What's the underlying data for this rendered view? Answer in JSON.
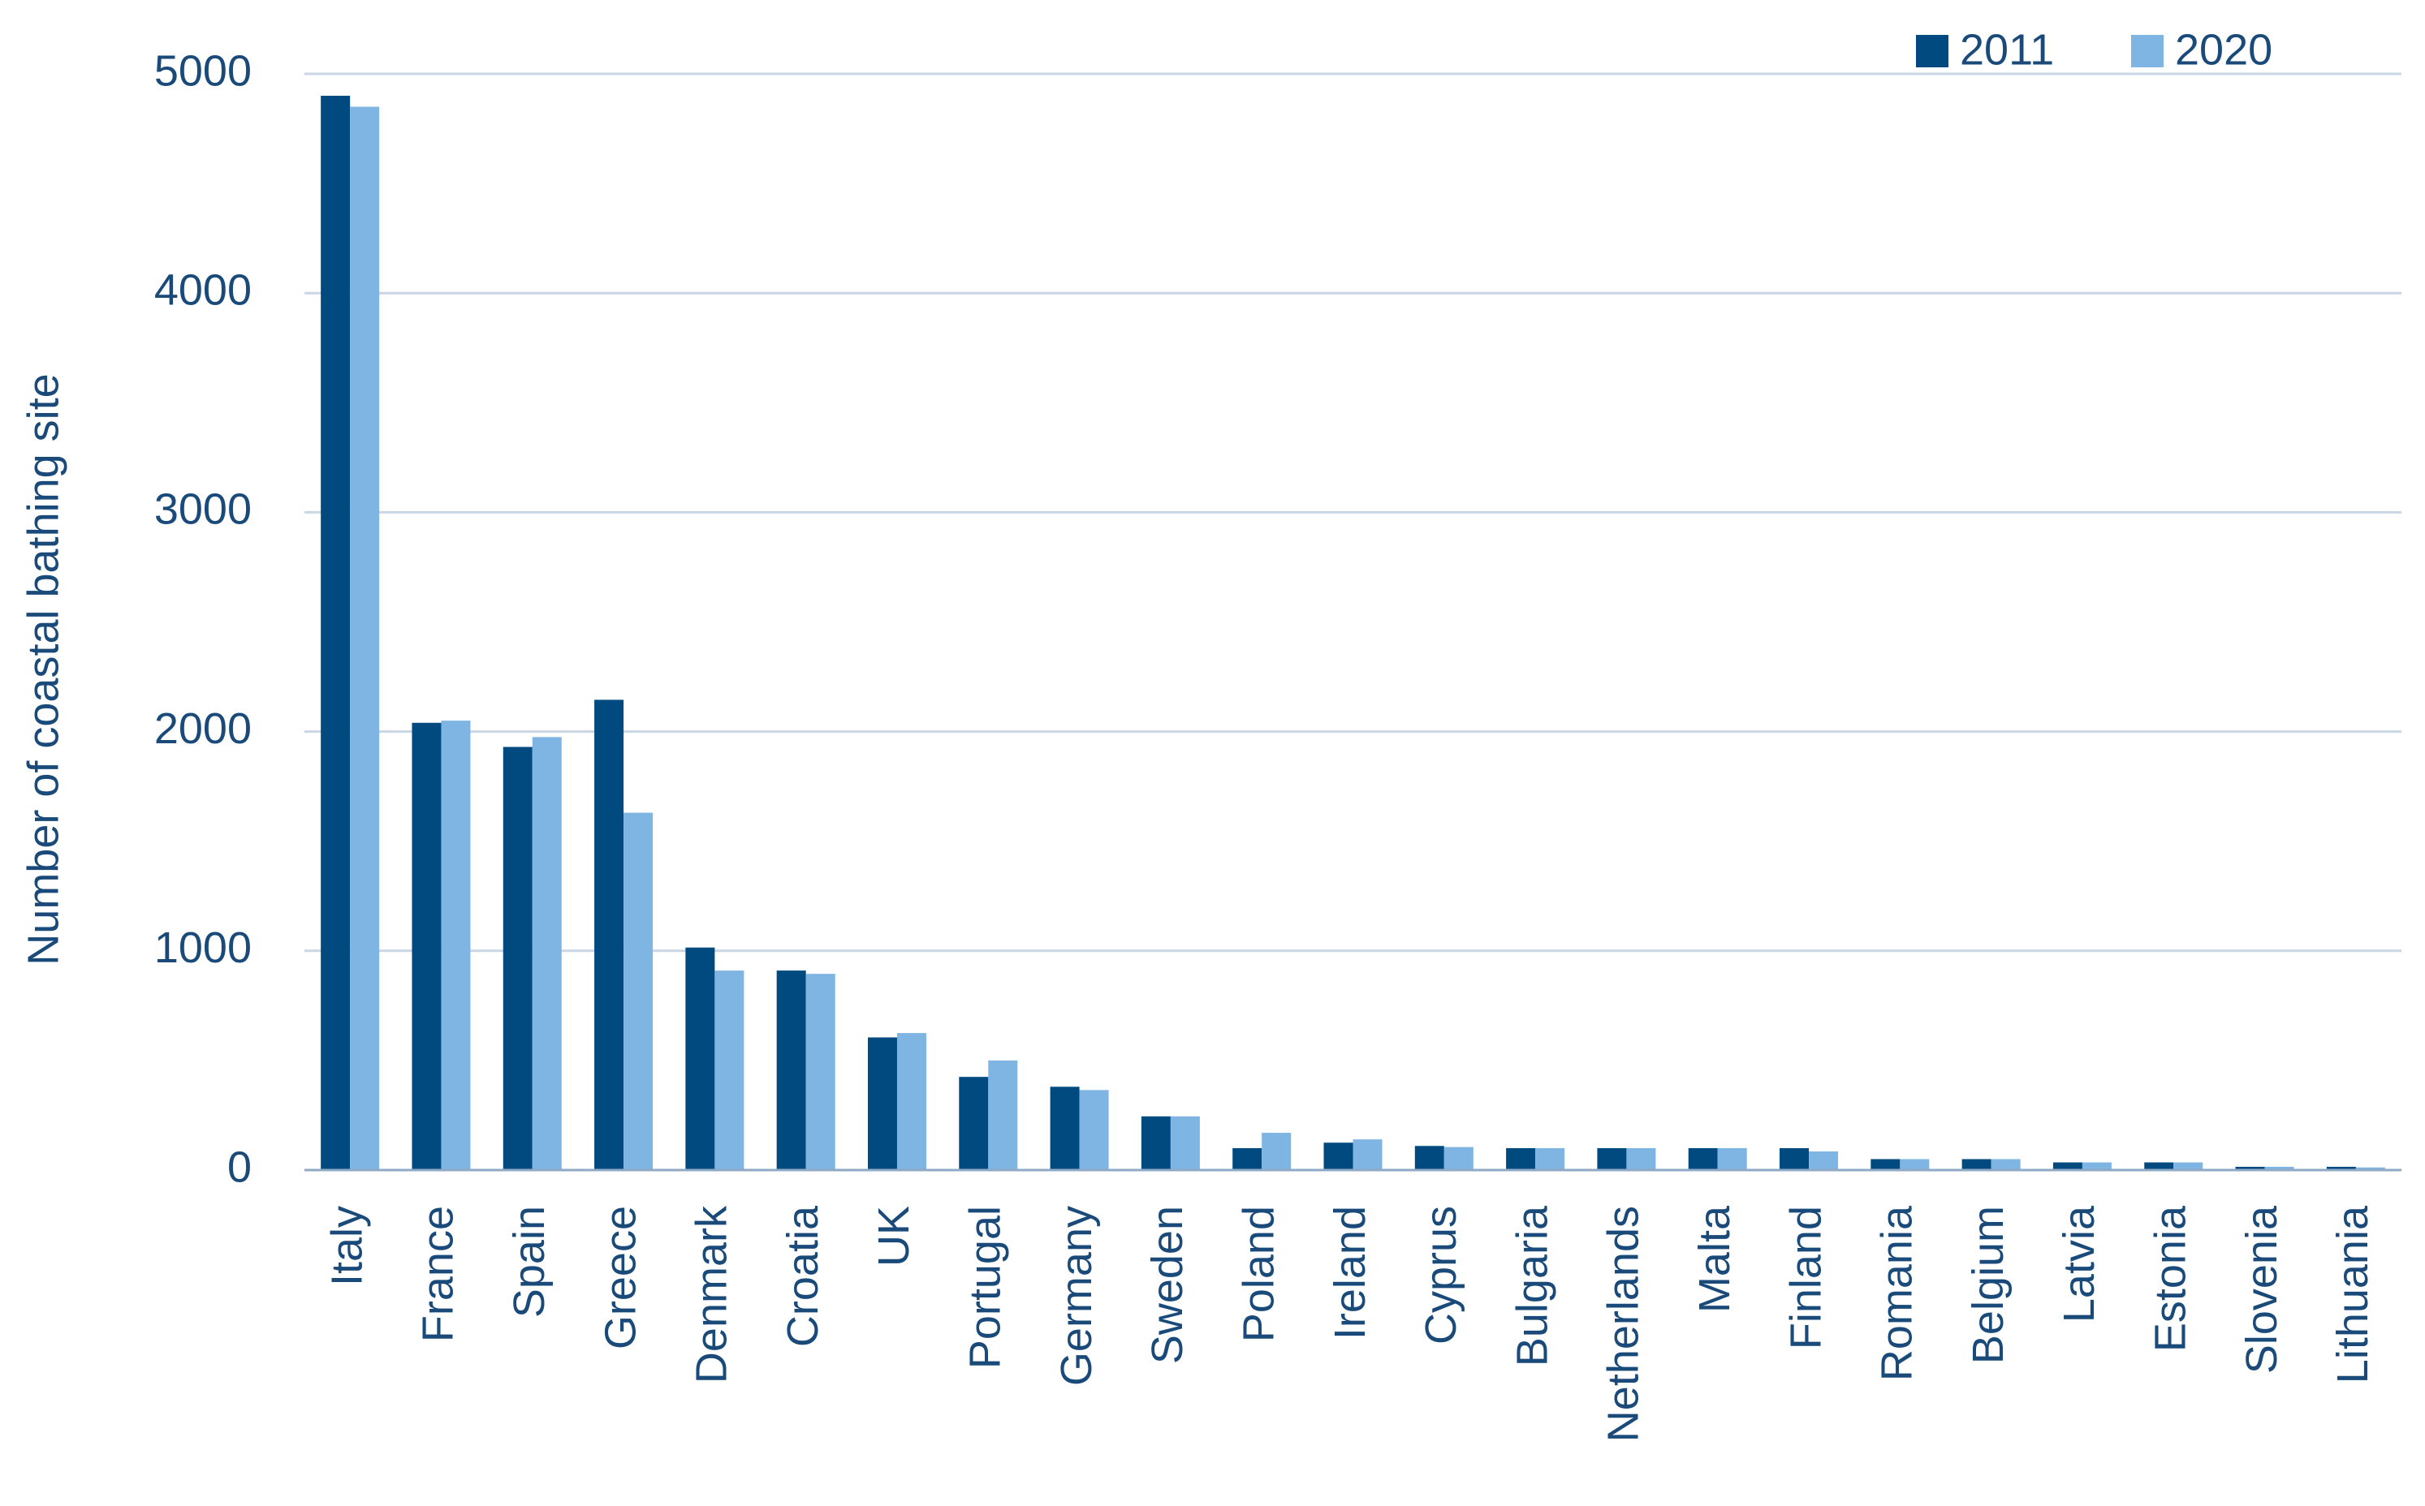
{
  "chart_data": {
    "type": "bar",
    "y_label": "Number of coastal bathing site",
    "categories": [
      "Italy",
      "France",
      "Spain",
      "Greece",
      "Denmark",
      "Croatia",
      "UK",
      "Portugal",
      "Germany",
      "Sweden",
      "Poland",
      "Ireland",
      "Cyprus",
      "Bulgaria",
      "Netherlands",
      "Malta",
      "Finland",
      "Romania",
      "Belgium",
      "Latvia",
      "Estonia",
      "Slovenia",
      "Lithuania"
    ],
    "series": [
      {
        "name": "2011",
        "color": "#004a80",
        "values": [
          4900,
          2040,
          1930,
          2145,
          1015,
          910,
          605,
          425,
          380,
          245,
          100,
          125,
          110,
          100,
          100,
          100,
          100,
          50,
          50,
          35,
          35,
          15,
          15
        ]
      },
      {
        "name": "2020",
        "color": "#7fb5e3",
        "values": [
          4850,
          2050,
          1975,
          1630,
          910,
          895,
          625,
          500,
          365,
          245,
          170,
          140,
          105,
          100,
          100,
          100,
          85,
          50,
          50,
          35,
          35,
          15,
          12
        ]
      }
    ],
    "ylim": [
      0,
      5000
    ],
    "yticks": [
      0,
      1000,
      2000,
      3000,
      4000,
      5000
    ],
    "grid": true,
    "legend": "top-right"
  }
}
